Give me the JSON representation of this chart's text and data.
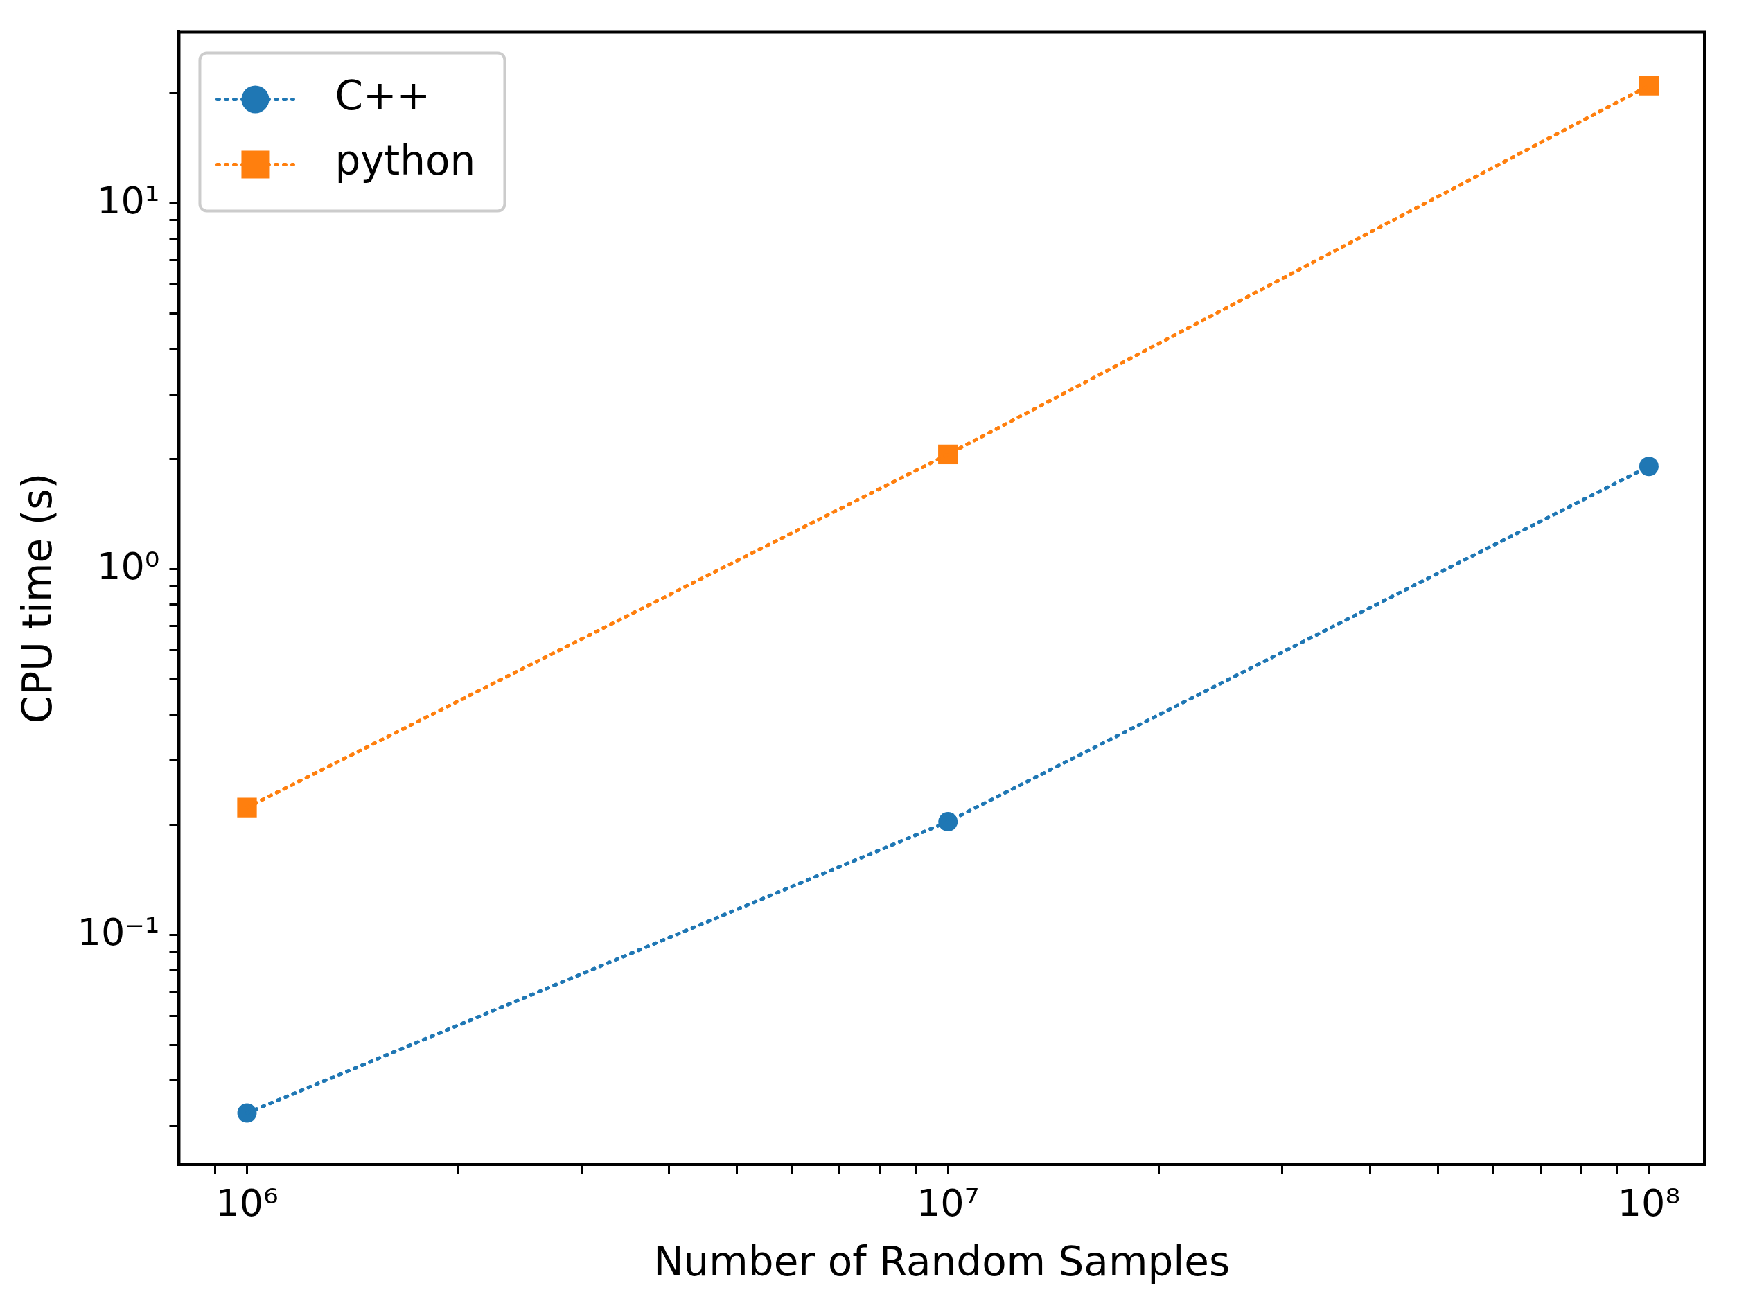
{
  "chart_data": {
    "type": "line",
    "xlabel": "Number of Random Samples",
    "ylabel": "CPU time (s)",
    "log": "xy",
    "grid": false,
    "legend": "top left",
    "line_style": "dotted",
    "x": [
      1000000,
      10000000,
      100000000
    ],
    "xlim": [
      800000,
      120000000
    ],
    "xticks": [
      {
        "value": 1000000,
        "label": "10⁶"
      },
      {
        "value": 10000000,
        "label": "10⁷"
      },
      {
        "value": 100000000,
        "label": "10⁸"
      },
      {
        "value": 900000,
        "label": null
      },
      {
        "value": 2000000,
        "label": null
      },
      {
        "value": 3000000,
        "label": null
      },
      {
        "value": 4000000,
        "label": null
      },
      {
        "value": 5000000,
        "label": null
      },
      {
        "value": 6000000,
        "label": null
      },
      {
        "value": 7000000,
        "label": null
      },
      {
        "value": 8000000,
        "label": null
      },
      {
        "value": 9000000,
        "label": null
      },
      {
        "value": 20000000,
        "label": null
      },
      {
        "value": 30000000,
        "label": null
      },
      {
        "value": 40000000,
        "label": null
      },
      {
        "value": 50000000,
        "label": null
      },
      {
        "value": 60000000,
        "label": null
      },
      {
        "value": 70000000,
        "label": null
      },
      {
        "value": 80000000,
        "label": null
      },
      {
        "value": 90000000,
        "label": null
      }
    ],
    "ylim": [
      0.0236,
      29.4
    ],
    "yticks": [
      {
        "value": 0.1,
        "label": "10⁻¹"
      },
      {
        "value": 1,
        "label": "10⁰"
      },
      {
        "value": 10,
        "label": "10¹"
      },
      {
        "value": 0.03,
        "label": null
      },
      {
        "value": 0.04,
        "label": null
      },
      {
        "value": 0.05,
        "label": null
      },
      {
        "value": 0.06,
        "label": null
      },
      {
        "value": 0.07,
        "label": null
      },
      {
        "value": 0.08,
        "label": null
      },
      {
        "value": 0.09,
        "label": null
      },
      {
        "value": 0.2,
        "label": null
      },
      {
        "value": 0.3,
        "label": null
      },
      {
        "value": 0.4,
        "label": null
      },
      {
        "value": 0.5,
        "label": null
      },
      {
        "value": 0.6,
        "label": null
      },
      {
        "value": 0.7,
        "label": null
      },
      {
        "value": 0.8,
        "label": null
      },
      {
        "value": 0.9,
        "label": null
      },
      {
        "value": 2,
        "label": null
      },
      {
        "value": 3,
        "label": null
      },
      {
        "value": 4,
        "label": null
      },
      {
        "value": 5,
        "label": null
      },
      {
        "value": 6,
        "label": null
      },
      {
        "value": 7,
        "label": null
      },
      {
        "value": 8,
        "label": null
      },
      {
        "value": 9,
        "label": null
      },
      {
        "value": 20,
        "label": null
      }
    ],
    "series": [
      {
        "name": "C++",
        "color": "#1f77b4",
        "marker": "circle",
        "values": [
          0.0326,
          0.204,
          1.91
        ]
      },
      {
        "name": "python",
        "color": "#ff7f0e",
        "marker": "square",
        "values": [
          0.223,
          2.06,
          21.0
        ]
      }
    ]
  }
}
